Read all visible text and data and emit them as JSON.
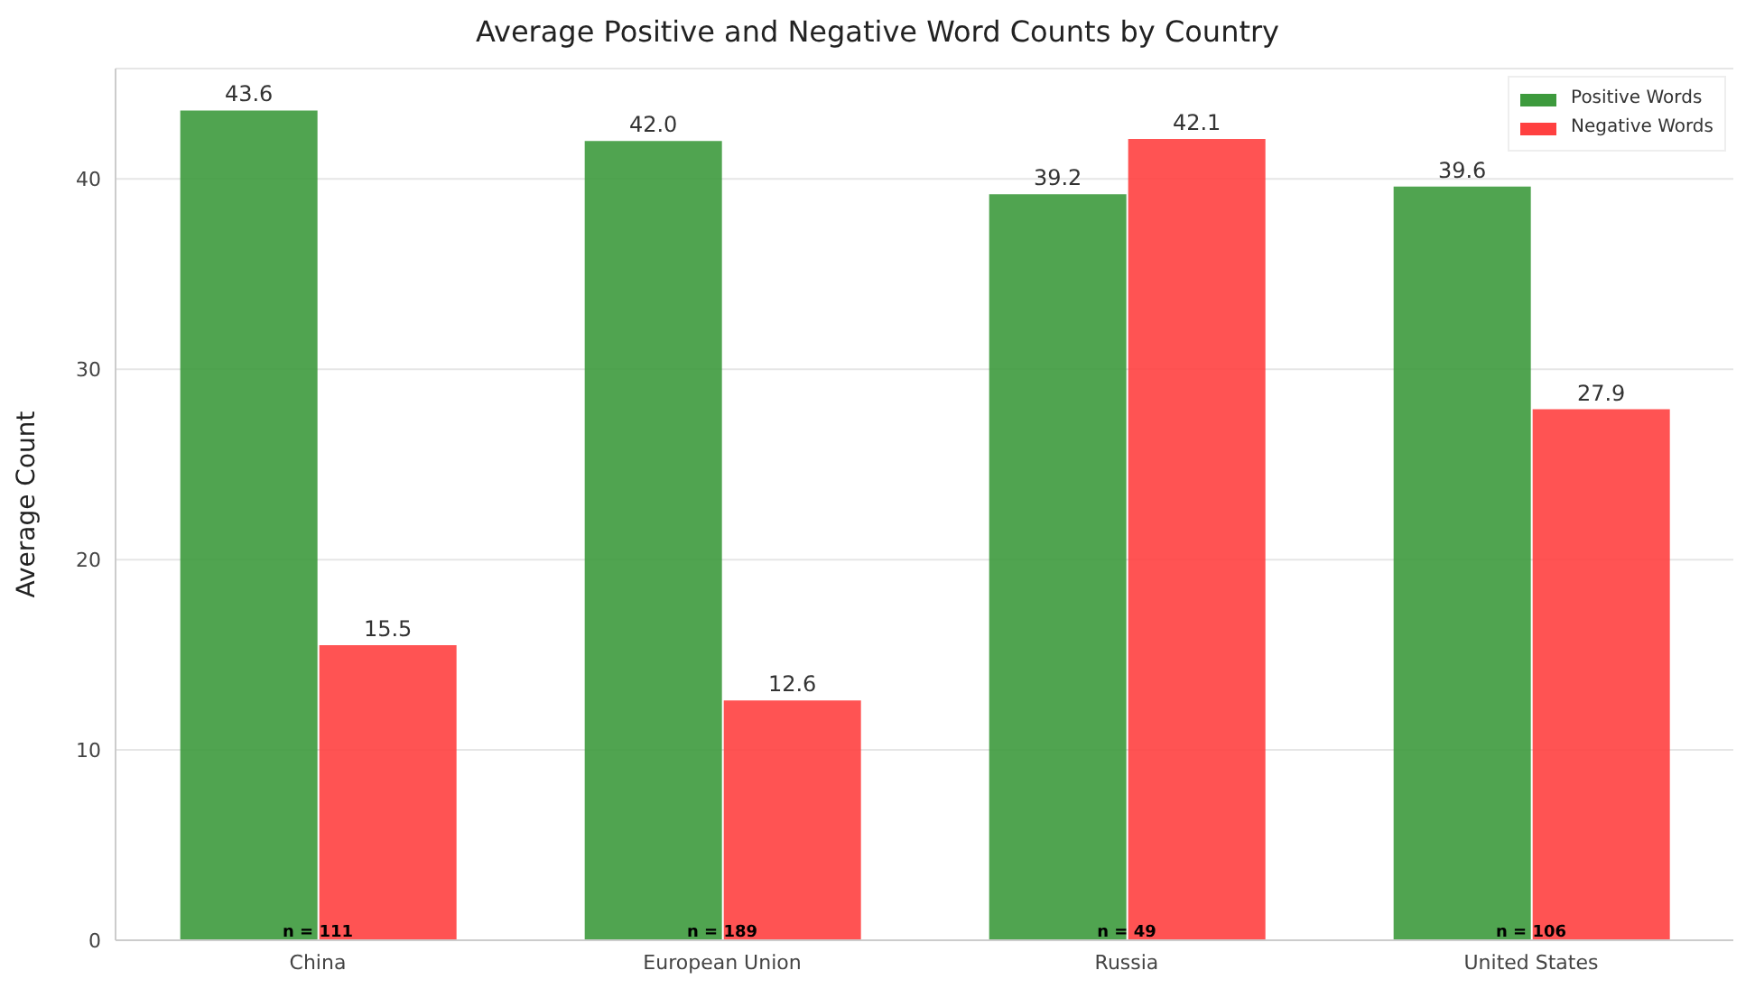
{
  "chart_data": {
    "type": "bar",
    "title": "Average Positive and Negative Word Counts by Country",
    "ylabel": "Average Count",
    "categories": [
      "China",
      "European Union",
      "Russia",
      "United States"
    ],
    "series": [
      {
        "name": "Positive Words",
        "color": "#3d9a3d",
        "values": [
          43.6,
          42.0,
          39.2,
          39.6
        ],
        "value_labels": [
          "43.6",
          "42.0",
          "39.2",
          "39.6"
        ]
      },
      {
        "name": "Negative Words",
        "color": "#ff4040",
        "values": [
          15.5,
          12.6,
          42.1,
          27.9
        ],
        "value_labels": [
          "15.5",
          "12.6",
          "42.1",
          "27.9"
        ]
      }
    ],
    "ylim": [
      0,
      45.8
    ],
    "yticks": [
      0,
      10,
      20,
      30,
      40
    ],
    "grid": "y",
    "legend": "top right",
    "annotations": [
      {
        "text": "n = 111",
        "x": "China",
        "y": 0
      },
      {
        "text": "n = 189",
        "x": "European Union",
        "y": 0
      },
      {
        "text": "n = 49",
        "x": "Russia",
        "y": 0
      },
      {
        "text": "n = 106",
        "x": "United States",
        "y": 0
      }
    ]
  }
}
